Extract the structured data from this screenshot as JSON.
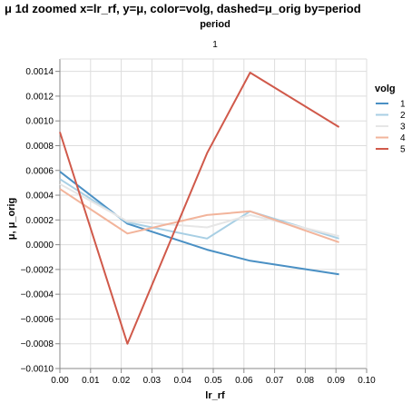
{
  "chart_data": {
    "type": "line",
    "title": "μ 1d zoomed x=lr_rf, y=μ, color=volg, dashed=μ_orig by=period",
    "facet_title": "period",
    "facet_label": "1",
    "xlabel": "lr_rf",
    "ylabel": "μ, μ_orig",
    "xlim": [
      0.0,
      0.1
    ],
    "ylim": [
      -0.001,
      0.0015
    ],
    "x_ticks": [
      "0.00",
      "0.01",
      "0.02",
      "0.03",
      "0.04",
      "0.05",
      "0.06",
      "0.07",
      "0.08",
      "0.09",
      "0.10"
    ],
    "y_ticks": [
      "−0.0010",
      "−0.0008",
      "−0.0006",
      "−0.0004",
      "−0.0002",
      "0.0000",
      "0.0002",
      "0.0004",
      "0.0006",
      "0.0008",
      "0.0010",
      "0.0012",
      "0.0014"
    ],
    "legend_title": "volg",
    "legend_position": "right",
    "grid": true,
    "series": [
      {
        "name": "1",
        "color": "#4a90c4",
        "points": [
          [
            0.0,
            0.00059
          ],
          [
            0.022,
            0.00017
          ],
          [
            0.048,
            -4e-05
          ],
          [
            0.062,
            -0.00013
          ],
          [
            0.091,
            -0.00024
          ]
        ]
      },
      {
        "name": "2",
        "color": "#a8cfe4",
        "points": [
          [
            0.0,
            0.00053
          ],
          [
            0.022,
            0.00018
          ],
          [
            0.048,
            5e-05
          ],
          [
            0.062,
            0.00027
          ],
          [
            0.091,
            5e-05
          ]
        ]
      },
      {
        "name": "3",
        "color": "#e6e6e6",
        "points": [
          [
            0.0,
            0.00049
          ],
          [
            0.022,
            0.00019
          ],
          [
            0.048,
            0.00014
          ],
          [
            0.062,
            0.00024
          ],
          [
            0.091,
            7e-05
          ]
        ]
      },
      {
        "name": "4",
        "color": "#f2b49b",
        "points": [
          [
            0.0,
            0.00045
          ],
          [
            0.022,
            9e-05
          ],
          [
            0.048,
            0.00024
          ],
          [
            0.062,
            0.00027
          ],
          [
            0.091,
            2e-05
          ]
        ]
      },
      {
        "name": "5",
        "color": "#d0594a",
        "points": [
          [
            0.0,
            0.00091
          ],
          [
            0.022,
            -0.0008
          ],
          [
            0.048,
            0.00074
          ],
          [
            0.062,
            0.00139
          ],
          [
            0.091,
            0.00095
          ]
        ]
      }
    ]
  }
}
